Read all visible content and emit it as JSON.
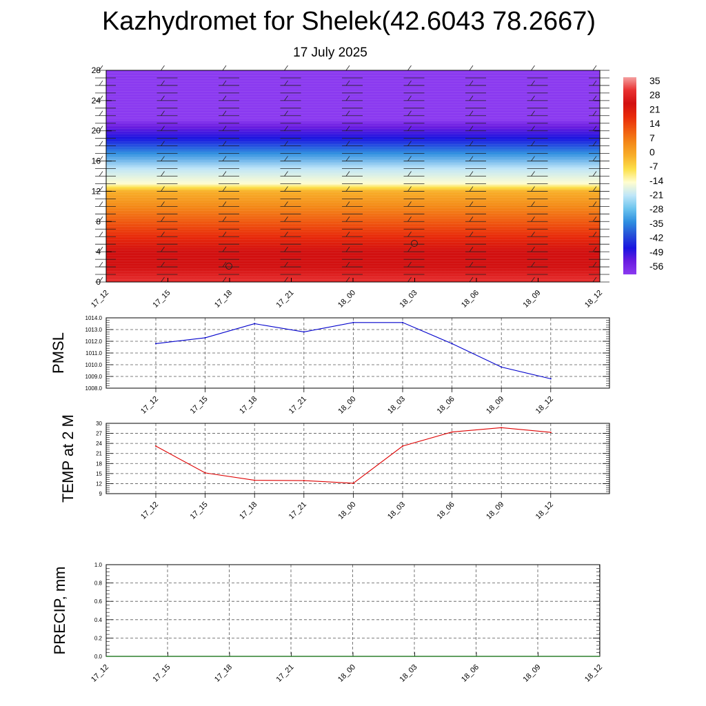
{
  "title": "Kazhydromet for Shelek(42.6043 78.2667)",
  "date": "17 July 2025",
  "time_labels": [
    "17_12",
    "17_15",
    "17_18",
    "17_21",
    "18_00",
    "18_03",
    "18_06",
    "18_09",
    "18_12"
  ],
  "chart_data": [
    {
      "type": "heatmap",
      "ylim": [
        0,
        28
      ],
      "y_ticks": [
        "0",
        "4",
        "8",
        "12",
        "16",
        "20",
        "24",
        "28"
      ],
      "x_ticks": [
        "17_12",
        "17_15",
        "17_18",
        "17_21",
        "18_00",
        "18_03",
        "18_06",
        "18_09",
        "18_12"
      ],
      "colorbar_labels": [
        "35",
        "28",
        "21",
        "14",
        "7",
        "0",
        "-7",
        "-14",
        "-21",
        "-28",
        "-35",
        "-42",
        "-49",
        "-56"
      ],
      "colorbar_colors": [
        "#f5a0a0",
        "#e83030",
        "#d21010",
        "#e82a0a",
        "#f05a10",
        "#f48a18",
        "#f8b02a",
        "#fce04a",
        "#fffdd0",
        "#bfe6f8",
        "#6cc4ee",
        "#2f8fe0",
        "#2650d8",
        "#1a14e0",
        "#6a1ce0",
        "#8b3af0"
      ],
      "profile_by_height": [
        [
          0,
          28
        ],
        [
          2,
          25
        ],
        [
          4,
          20
        ],
        [
          6,
          14
        ],
        [
          8,
          8
        ],
        [
          10,
          2
        ],
        [
          12,
          -6
        ],
        [
          12.5,
          -12
        ],
        [
          13,
          -16
        ],
        [
          15,
          -24
        ],
        [
          17,
          -34
        ],
        [
          19,
          -46
        ],
        [
          20.5,
          -56
        ],
        [
          21.5,
          -60
        ],
        [
          24,
          -60
        ],
        [
          28,
          -60
        ]
      ],
      "wind_barbs": "present"
    },
    {
      "type": "line",
      "ylabel": "PMSL",
      "ylim": [
        1008.0,
        1014.0
      ],
      "y_ticks": [
        "1008.0",
        "1009.0",
        "1010.0",
        "1011.0",
        "1012.0",
        "1013.0",
        "1014.0"
      ],
      "x": [
        "17_12",
        "17_15",
        "17_18",
        "17_21",
        "18_00",
        "18_03",
        "18_06",
        "18_09",
        "18_12"
      ],
      "series": [
        {
          "values": [
            1011.8,
            1012.3,
            1013.5,
            1012.8,
            1013.6,
            1013.6,
            1011.8,
            1009.8,
            1008.8
          ],
          "color": "#0000cc"
        }
      ]
    },
    {
      "type": "line",
      "ylabel": "TEMP at 2 M",
      "ylim": [
        9,
        30
      ],
      "y_ticks": [
        "9",
        "12",
        "15",
        "18",
        "21",
        "24",
        "27",
        "30"
      ],
      "x": [
        "17_12",
        "17_15",
        "17_18",
        "17_21",
        "18_00",
        "18_03",
        "18_06",
        "18_09",
        "18_12"
      ],
      "series": [
        {
          "values": [
            23.2,
            15.2,
            13.0,
            12.9,
            12.1,
            23.2,
            27.4,
            28.7,
            27.3
          ],
          "color": "#dd0000"
        }
      ]
    },
    {
      "type": "line",
      "ylabel": "PRECIP, mm",
      "ylim": [
        0.0,
        1.0
      ],
      "y_ticks": [
        "0.0",
        "0.2",
        "0.4",
        "0.6",
        "0.8",
        "1.0"
      ],
      "x_ticks": [
        "17_12",
        "17_15",
        "17_18",
        "17_21",
        "18_00",
        "18_03",
        "18_06",
        "18_09",
        "18_12"
      ],
      "series": [
        {
          "values": [
            0,
            0,
            0,
            0,
            0,
            0,
            0,
            0,
            0
          ],
          "color": "#006600"
        }
      ]
    }
  ]
}
